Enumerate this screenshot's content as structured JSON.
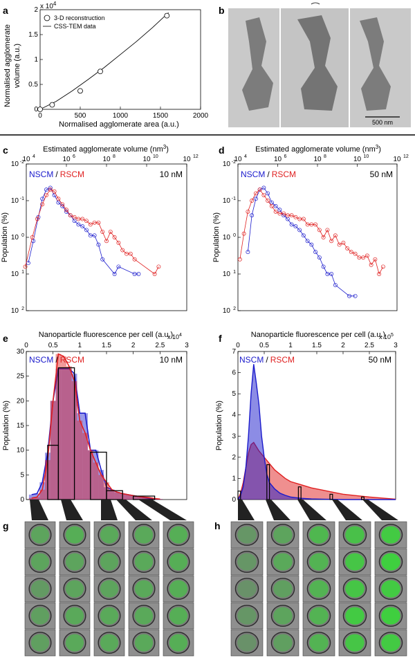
{
  "panels": {
    "a": {
      "letter": "a",
      "exponent": "x 10^4",
      "exp_base": "x 10",
      "exp_power": "4",
      "xlabel": "Normalised agglomerate area (a.u.)",
      "ylabel_line1": "Normalised agglomerate",
      "ylabel_line2": "volume (a.u.)",
      "legend": [
        "3-D reconstruction",
        "CSS-TEM data"
      ],
      "xticks": [
        "0",
        "500",
        "1000",
        "1500",
        "2000"
      ],
      "yticks": [
        "0",
        "0.5",
        "1",
        "1.5",
        "2"
      ]
    },
    "b": {
      "letter": "b",
      "scale_bar": "500 nm"
    },
    "c": {
      "letter": "c",
      "top_label": "Estimated agglomerate volume (nm",
      "top_label_sup": "3",
      "top_label_end": ")",
      "ylabel": "Population (%)",
      "legend_a": "NSCM",
      "legend_sep": "/",
      "legend_b": "RSCM",
      "conc": "10 nM",
      "xticks": [
        "10",
        "10",
        "10",
        "10",
        "10"
      ],
      "xtick_sups": [
        "4",
        "6",
        "8",
        "10",
        "12"
      ],
      "yticks": [
        "10",
        "10",
        "10",
        "10",
        "10"
      ],
      "ytick_sups": [
        "2",
        "1",
        "0",
        "-1",
        "-2"
      ]
    },
    "d": {
      "letter": "d",
      "top_label": "Estimated agglomerate volume (nm",
      "top_label_sup": "3",
      "top_label_end": ")",
      "ylabel": "Population (%)",
      "legend_a": "NSCM",
      "legend_sep": "/",
      "legend_b": "RSCM",
      "conc": "50 nM",
      "xticks": [
        "10",
        "10",
        "10",
        "10",
        "10"
      ],
      "xtick_sups": [
        "4",
        "6",
        "8",
        "10",
        "12"
      ],
      "yticks": [
        "10",
        "10",
        "10",
        "10",
        "10"
      ],
      "ytick_sups": [
        "2",
        "1",
        "0",
        "-1",
        "-2"
      ]
    },
    "e": {
      "letter": "e",
      "top_label": "Nanoparticle fluorescence per cell (a.u.)",
      "exp_base": "x 10",
      "exp_power": "4",
      "ylabel": "Population (%)",
      "legend_a": "NSCM",
      "legend_sep": "/",
      "legend_b": "RSCM",
      "conc": "10 nM",
      "xticks": [
        "0",
        "0.5",
        "1",
        "1.5",
        "2",
        "2.5",
        "3"
      ],
      "yticks": [
        "0",
        "5",
        "10",
        "15",
        "20",
        "25",
        "30"
      ]
    },
    "f": {
      "letter": "f",
      "top_label": "Nanoparticle fluorescence per cell (a.u.)",
      "exp_base": "x 10",
      "exp_power": "5",
      "ylabel": "Population (%)",
      "legend_a": "NSCM",
      "legend_sep": "/",
      "legend_b": "RSCM",
      "conc": "50 nM",
      "xticks": [
        "0",
        "0.5",
        "1",
        "1.5",
        "2",
        "2.5",
        "3"
      ],
      "yticks": [
        "0",
        "1",
        "2",
        "3",
        "4",
        "5",
        "6",
        "7"
      ]
    },
    "g": {
      "letter": "g"
    },
    "h": {
      "letter": "h"
    }
  },
  "colors": {
    "nscm": "#1a1acc",
    "rscm": "#e02020",
    "axis": "#000000"
  },
  "chart_data": [
    {
      "panel": "a",
      "type": "scatter",
      "xlabel": "Normalised agglomerate area (a.u.)",
      "ylabel": "Normalised agglomerate volume (a.u.)",
      "xlim": [
        0,
        2000
      ],
      "ylim": [
        0,
        20000
      ],
      "series": [
        {
          "name": "3-D reconstruction",
          "type": "scatter",
          "x": [
            0,
            150,
            500,
            750,
            1580
          ],
          "y": [
            0,
            900,
            3700,
            7600,
            18800
          ]
        },
        {
          "name": "CSS-TEM data",
          "type": "line",
          "x": [
            0,
            200,
            400,
            600,
            800,
            1000,
            1200,
            1400,
            1600
          ],
          "y": [
            0,
            1600,
            3700,
            6000,
            8400,
            11000,
            13600,
            16400,
            19400
          ]
        }
      ]
    },
    {
      "panel": "c",
      "type": "line",
      "scale": "log-log",
      "top_label": "Estimated agglomerate volume (nm3)",
      "ylabel": "Population (%)",
      "xlim_exp": [
        4,
        12
      ],
      "ylim_exp": [
        -2,
        2
      ],
      "series": [
        {
          "name": "NSCM",
          "log_x": [
            4.1,
            4.35,
            4.6,
            4.8,
            5.0,
            5.2,
            5.4,
            5.6,
            5.8,
            6.0,
            6.2,
            6.4,
            6.6,
            6.8,
            7.0,
            7.2,
            7.4,
            7.6,
            7.8,
            8.4,
            8.6,
            9.4,
            9.6
          ],
          "log_y": [
            -0.7,
            -0.1,
            0.55,
            1.05,
            1.3,
            1.35,
            1.15,
            0.95,
            0.85,
            0.7,
            0.6,
            0.45,
            0.35,
            0.3,
            0.2,
            0.05,
            0.05,
            -0.2,
            -0.6,
            -1.0,
            -0.8,
            -1.0,
            -1.0
          ]
        },
        {
          "name": "RSCM",
          "log_x": [
            3.95,
            4.3,
            4.55,
            4.8,
            5.0,
            5.2,
            5.4,
            5.6,
            5.8,
            6.0,
            6.2,
            6.4,
            6.6,
            6.8,
            7.0,
            7.2,
            7.4,
            7.6,
            7.8,
            8.0,
            8.2,
            8.4,
            8.6,
            8.8,
            9.0,
            9.2,
            9.4,
            10.4,
            10.6
          ],
          "log_y": [
            -0.8,
            0.0,
            0.5,
            0.9,
            1.15,
            1.3,
            1.25,
            1.05,
            0.9,
            0.75,
            0.6,
            0.55,
            0.5,
            0.5,
            0.45,
            0.35,
            0.4,
            0.4,
            0.15,
            -0.1,
            0.15,
            0.0,
            -0.15,
            -0.35,
            -0.45,
            -0.45,
            -0.6,
            -1.0,
            -0.8
          ]
        }
      ]
    },
    {
      "panel": "d",
      "type": "line",
      "scale": "log-log",
      "top_label": "Estimated agglomerate volume (nm3)",
      "ylabel": "Population (%)",
      "xlim_exp": [
        4,
        12
      ],
      "ylim_exp": [
        -2,
        2
      ],
      "series": [
        {
          "name": "NSCM",
          "log_x": [
            4.5,
            4.7,
            4.9,
            5.1,
            5.3,
            5.5,
            5.7,
            5.9,
            6.1,
            6.3,
            6.5,
            6.7,
            6.9,
            7.1,
            7.3,
            7.5,
            7.7,
            7.9,
            8.1,
            8.3,
            8.5,
            8.7,
            8.9,
            9.6,
            9.9
          ],
          "log_y": [
            -0.4,
            0.6,
            1.05,
            1.3,
            1.35,
            1.2,
            0.95,
            0.85,
            0.75,
            0.6,
            0.5,
            0.35,
            0.3,
            0.2,
            0.05,
            -0.1,
            -0.2,
            -0.4,
            -0.55,
            -0.8,
            -1.0,
            -1.0,
            -1.3,
            -1.6,
            -1.6
          ]
        },
        {
          "name": "RSCM",
          "log_x": [
            4.1,
            4.3,
            4.5,
            4.7,
            4.9,
            5.1,
            5.3,
            5.5,
            5.7,
            5.9,
            6.1,
            6.3,
            6.5,
            6.7,
            6.9,
            7.1,
            7.3,
            7.5,
            7.7,
            7.9,
            8.1,
            8.3,
            8.5,
            8.7,
            8.9,
            9.1,
            9.3,
            9.5,
            9.7,
            9.9,
            10.1,
            10.3,
            10.5,
            10.7,
            10.9,
            11.1,
            11.3
          ],
          "log_y": [
            -0.6,
            0.1,
            0.7,
            1.0,
            1.2,
            1.3,
            1.15,
            1.0,
            0.85,
            0.7,
            0.65,
            0.65,
            0.6,
            0.6,
            0.55,
            0.5,
            0.5,
            0.35,
            0.35,
            0.35,
            0.2,
            0.0,
            0.2,
            -0.1,
            0.05,
            -0.2,
            -0.15,
            -0.3,
            -0.4,
            -0.45,
            -0.55,
            -0.55,
            -0.5,
            -0.75,
            -0.6,
            -1.0,
            -0.8
          ]
        }
      ]
    },
    {
      "panel": "e",
      "type": "bar",
      "top_label": "Nanoparticle fluorescence per cell (a.u.)",
      "ylabel": "Population (%)",
      "xlim": [
        0,
        30000
      ],
      "ylim": [
        0,
        30
      ],
      "bin_centers": [
        1000,
        2000,
        3000,
        4000,
        5000,
        6000,
        7000,
        8000,
        9000,
        10000,
        11000,
        12000,
        13000,
        14000,
        15000,
        16000,
        17000,
        18000,
        19000,
        20000,
        21000,
        22000,
        23000,
        24000,
        25000
      ],
      "series": [
        {
          "name": "NSCM",
          "values": [
            1.0,
            1.2,
            3.5,
            9.5,
            20.0,
            26.5,
            26.5,
            26.5,
            25.5,
            17.5,
            17.5,
            10.0,
            10.0,
            6.0,
            2.5,
            2.0,
            1.5,
            1.2,
            1.0,
            0.8,
            0.6,
            0.4,
            0.2,
            0.1,
            0.1
          ]
        },
        {
          "name": "RSCM",
          "values": [
            0.3,
            0.5,
            2.0,
            8.0,
            20.0,
            29.5,
            29.0,
            27.0,
            24.0,
            16.0,
            13.5,
            10.0,
            7.5,
            5.0,
            3.5,
            2.0,
            1.5,
            1.2,
            1.0,
            0.8,
            0.6,
            0.5,
            0.4,
            0.2,
            0.1
          ]
        }
      ],
      "outlined_bins": [
        {
          "x": [
            4000,
            6000
          ],
          "value": 11.0
        },
        {
          "x": [
            6000,
            9000
          ],
          "value": 26.7
        },
        {
          "x": [
            12000,
            15000
          ],
          "value": 9.6
        },
        {
          "x": [
            15000,
            18000
          ],
          "value": 1.8
        },
        {
          "x": [
            20000,
            24000
          ],
          "value": 0.7
        }
      ]
    },
    {
      "panel": "f",
      "type": "area",
      "top_label": "Nanoparticle fluorescence per cell (a.u.)",
      "ylabel": "Population (%)",
      "xlim": [
        0,
        300000
      ],
      "ylim": [
        0,
        7
      ],
      "series": [
        {
          "name": "NSCM",
          "x": [
            0,
            5000,
            10000,
            15000,
            20000,
            25000,
            30000,
            35000,
            40000,
            45000,
            50000,
            55000,
            60000,
            70000,
            80000,
            90000,
            100000,
            120000,
            140000,
            160000,
            180000,
            200000,
            250000,
            300000
          ],
          "y": [
            0,
            0.2,
            0.6,
            1.5,
            3.0,
            5.0,
            6.4,
            5.5,
            4.5,
            3.0,
            2.0,
            1.2,
            0.8,
            0.5,
            0.3,
            0.2,
            0.12,
            0.06,
            0.03,
            0.02,
            0.01,
            0.0,
            0.0,
            0.0
          ]
        },
        {
          "name": "RSCM",
          "x": [
            0,
            5000,
            10000,
            15000,
            20000,
            25000,
            30000,
            35000,
            40000,
            50000,
            60000,
            70000,
            80000,
            90000,
            100000,
            120000,
            140000,
            160000,
            180000,
            200000,
            220000,
            250000,
            280000,
            300000
          ],
          "y": [
            0,
            0.3,
            0.8,
            1.5,
            2.2,
            2.6,
            2.7,
            2.5,
            2.3,
            2.0,
            1.7,
            1.4,
            1.2,
            1.0,
            0.85,
            0.7,
            0.55,
            0.45,
            0.35,
            0.25,
            0.2,
            0.12,
            0.06,
            0.02
          ]
        }
      ],
      "outlined_bins": [
        {
          "x": [
            0,
            5000
          ],
          "value": 0.4
        },
        {
          "x": [
            55000,
            60000
          ],
          "value": 1.65
        },
        {
          "x": [
            115000,
            120000
          ],
          "value": 0.6
        },
        {
          "x": [
            175000,
            180000
          ],
          "value": 0.25
        },
        {
          "x": [
            235000,
            240000
          ],
          "value": 0.12
        }
      ]
    }
  ],
  "cell_grids": {
    "g": {
      "columns": 5,
      "rows": 5,
      "green_intensity": [
        [
          0.45,
          0.55,
          0.5,
          0.5,
          0.55
        ],
        [
          0.45,
          0.45,
          0.45,
          0.5,
          0.55
        ],
        [
          0.35,
          0.45,
          0.45,
          0.5,
          0.55
        ],
        [
          0.4,
          0.5,
          0.5,
          0.5,
          0.55
        ],
        [
          0.4,
          0.5,
          0.5,
          0.5,
          0.55
        ]
      ]
    },
    "h": {
      "columns": 5,
      "rows": 5,
      "green_intensity": [
        [
          0.3,
          0.45,
          0.65,
          0.75,
          0.85
        ],
        [
          0.3,
          0.5,
          0.6,
          0.8,
          0.9
        ],
        [
          0.25,
          0.4,
          0.6,
          0.8,
          0.85
        ],
        [
          0.3,
          0.45,
          0.6,
          0.85,
          0.9
        ],
        [
          0.25,
          0.4,
          0.6,
          0.8,
          0.85
        ]
      ]
    }
  }
}
